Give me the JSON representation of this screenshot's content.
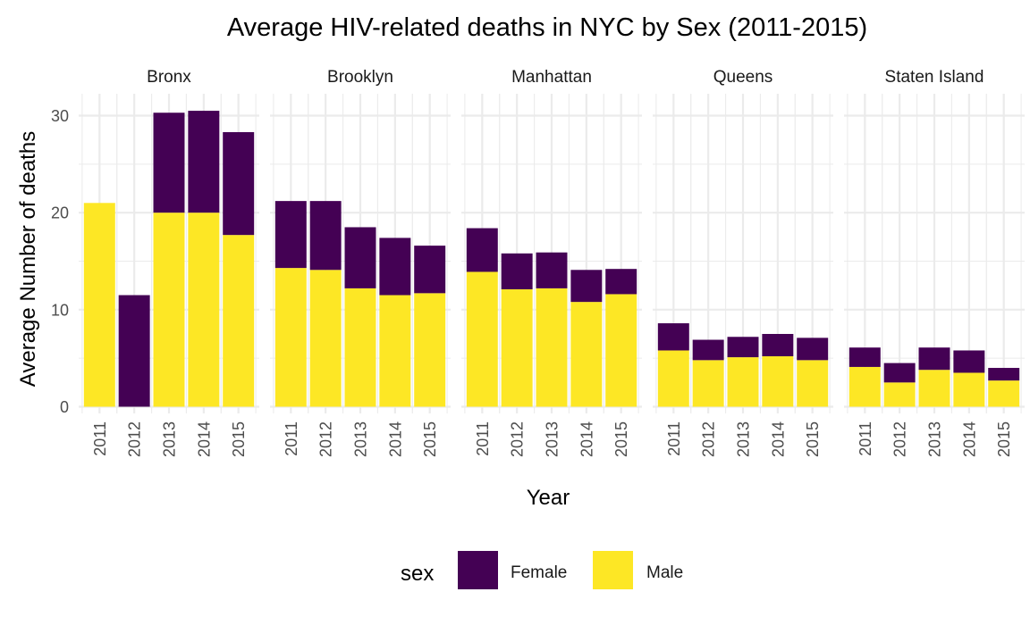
{
  "chart_data": {
    "type": "bar",
    "stacked": true,
    "faceted": true,
    "title": "Average HIV-related deaths in NYC by Sex (2011-2015)",
    "xlabel": "Year",
    "ylabel": "Average Number of deaths",
    "ylim": [
      0,
      32
    ],
    "yticks": [
      0,
      10,
      20,
      30
    ],
    "grid": true,
    "categories": [
      "2011",
      "2012",
      "2013",
      "2014",
      "2015"
    ],
    "legend": {
      "title": "sex",
      "position": "bottom",
      "entries": [
        {
          "label": "Female",
          "color": "#440154"
        },
        {
          "label": "Male",
          "color": "#FDE725"
        }
      ]
    },
    "facets": [
      {
        "name": "Bronx",
        "series": [
          {
            "name": "Male",
            "values": [
              21.0,
              0,
              20.0,
              20.0,
              17.7
            ]
          },
          {
            "name": "Female",
            "values": [
              0,
              11.5,
              10.3,
              10.5,
              10.6
            ]
          }
        ]
      },
      {
        "name": "Brooklyn",
        "series": [
          {
            "name": "Male",
            "values": [
              14.3,
              14.1,
              12.2,
              11.5,
              11.7
            ]
          },
          {
            "name": "Female",
            "values": [
              6.9,
              7.1,
              6.3,
              5.9,
              4.9
            ]
          }
        ]
      },
      {
        "name": "Manhattan",
        "series": [
          {
            "name": "Male",
            "values": [
              13.9,
              12.1,
              12.2,
              10.8,
              11.6
            ]
          },
          {
            "name": "Female",
            "values": [
              4.5,
              3.7,
              3.7,
              3.3,
              2.6
            ]
          }
        ]
      },
      {
        "name": "Queens",
        "series": [
          {
            "name": "Male",
            "values": [
              5.8,
              4.8,
              5.1,
              5.2,
              4.8
            ]
          },
          {
            "name": "Female",
            "values": [
              2.8,
              2.1,
              2.1,
              2.3,
              2.3
            ]
          }
        ]
      },
      {
        "name": "Staten Island",
        "series": [
          {
            "name": "Male",
            "values": [
              4.1,
              2.5,
              3.8,
              3.5,
              2.7
            ]
          },
          {
            "name": "Female",
            "values": [
              2.0,
              2.0,
              2.3,
              2.3,
              1.3
            ]
          }
        ]
      }
    ]
  }
}
